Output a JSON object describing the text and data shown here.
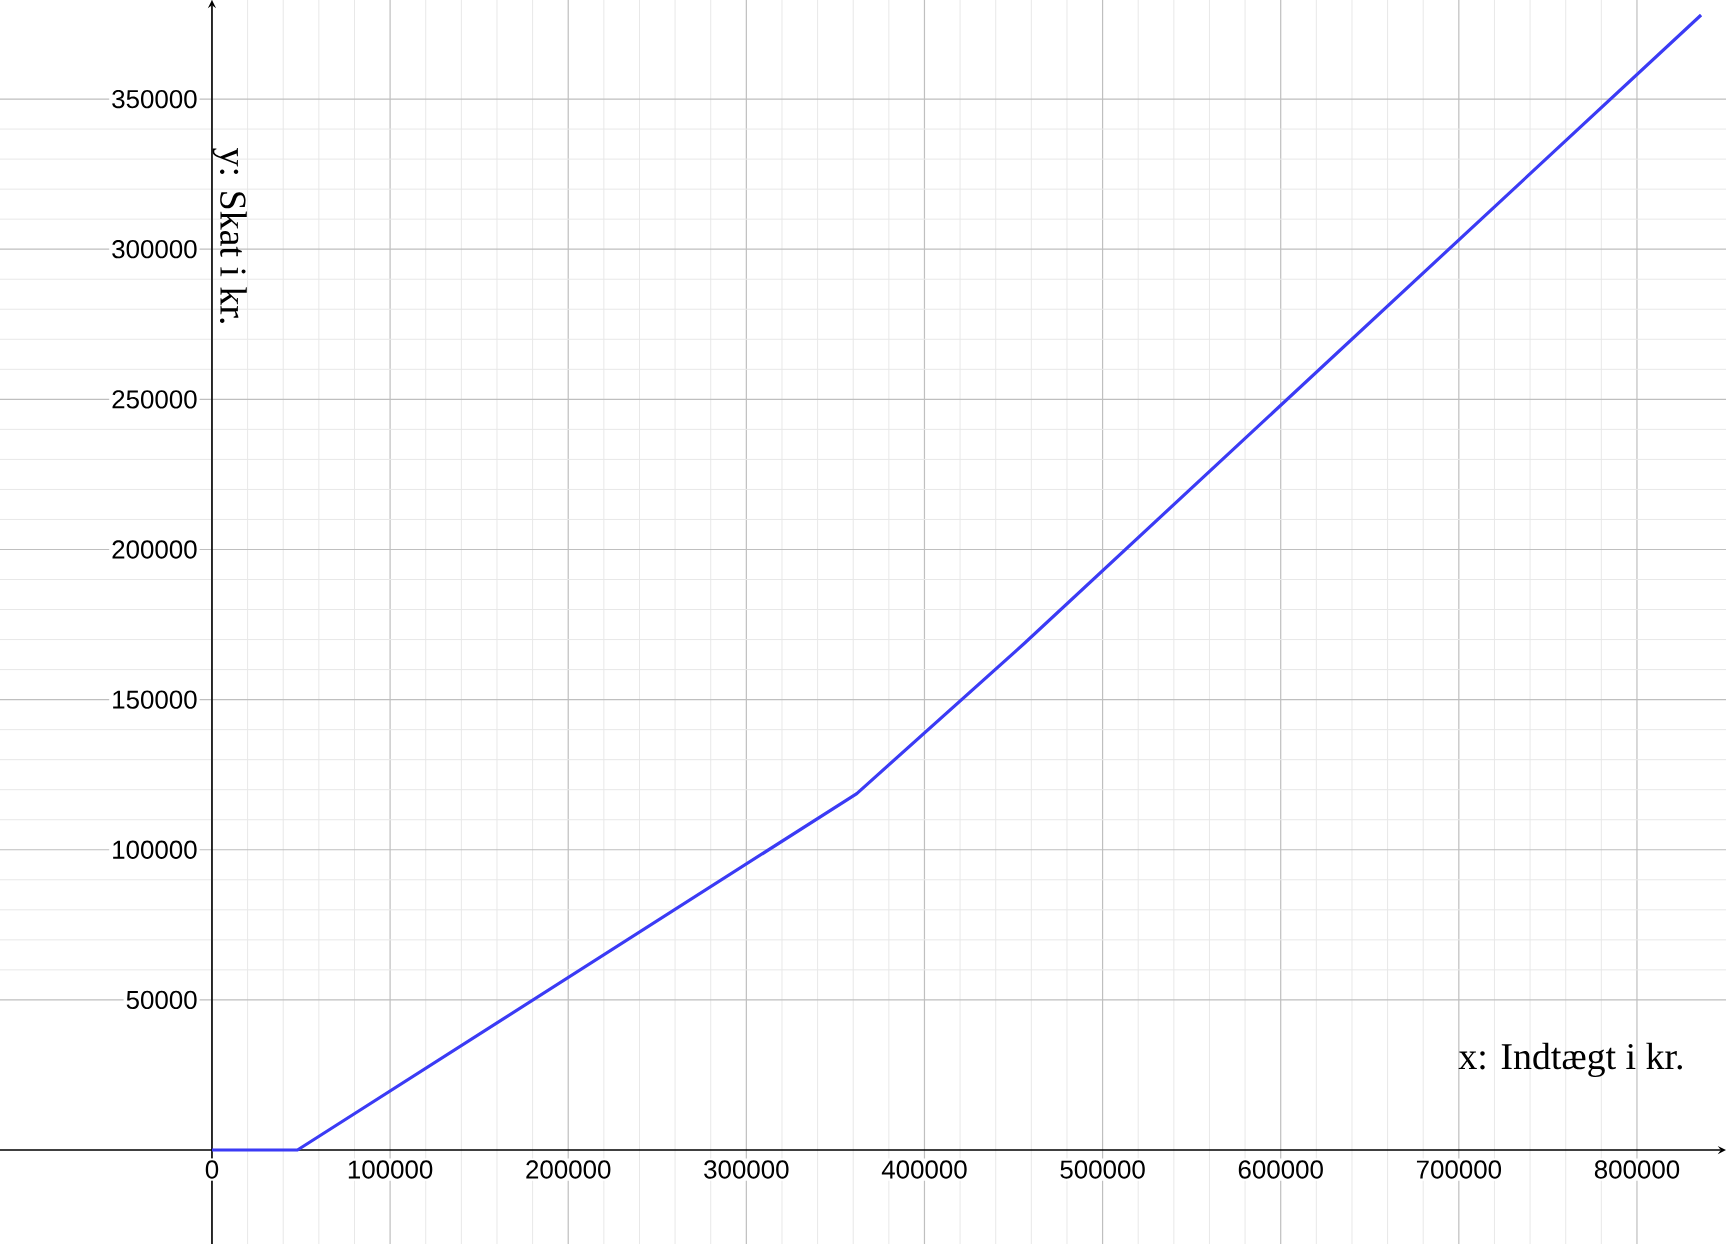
{
  "chart_data": {
    "type": "line",
    "xlabel": "x: Indtægt i kr.",
    "ylabel": "y: Skat i kr.",
    "x": [
      0,
      48000,
      362000,
      456000,
      836000
    ],
    "series": [
      {
        "color": "#3b3bf5",
        "values": [
          0,
          0,
          118700,
          168700,
          378000
        ]
      }
    ],
    "xlim": [
      -119000,
      850000
    ],
    "ylim": [
      -31300,
      383000
    ],
    "xticks": [
      0,
      100000,
      200000,
      300000,
      400000,
      500000,
      600000,
      700000,
      800000
    ],
    "yticks": [
      50000,
      100000,
      150000,
      200000,
      250000,
      300000,
      350000
    ],
    "grid": true,
    "marker": "none",
    "line_style": "solid"
  }
}
